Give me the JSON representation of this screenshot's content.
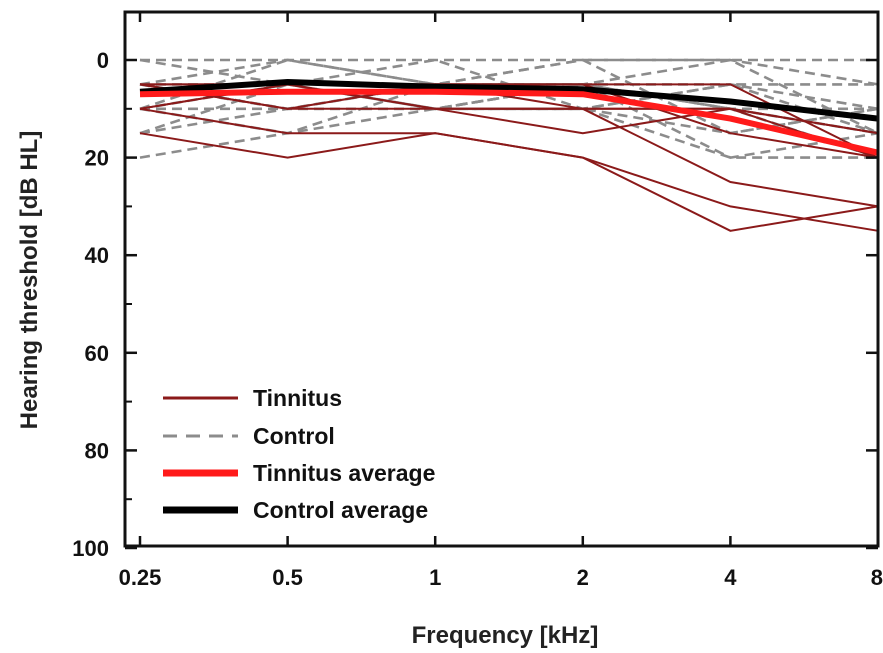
{
  "chart_data": {
    "type": "line",
    "xlabel": "Frequency [kHz]",
    "ylabel": "Hearing threshold [dB HL]",
    "x_ticks": [
      "0.25",
      "0.5",
      "1",
      "2",
      "4",
      "8"
    ],
    "x_scale": "log2",
    "y_ticks": [
      "0",
      "20",
      "40",
      "60",
      "80",
      "100"
    ],
    "ylim": [
      100,
      -10
    ],
    "y_inverted": true,
    "grid": false,
    "legend_position": "bottom-left",
    "legend": [
      {
        "label": "Tinnitus",
        "color": "#8b1a1a",
        "style": "solid"
      },
      {
        "label": "Control",
        "color": "#8c8c8c",
        "style": "dashed"
      },
      {
        "label": "Tinnitus average",
        "color": "#ff1a1a",
        "style": "solid-thick"
      },
      {
        "label": "Control average",
        "color": "#000000",
        "style": "solid-thick"
      }
    ],
    "x": [
      0.25,
      0.5,
      1,
      2,
      4,
      8
    ],
    "tinnitus_individual": [
      [
        15,
        20,
        15,
        20,
        35,
        30
      ],
      [
        10,
        15,
        15,
        20,
        30,
        35
      ],
      [
        5,
        10,
        10,
        10,
        25,
        30
      ],
      [
        10,
        5,
        10,
        10,
        10,
        20
      ],
      [
        5,
        10,
        5,
        5,
        15,
        20
      ],
      [
        10,
        5,
        10,
        15,
        10,
        15
      ],
      [
        5,
        5,
        5,
        10,
        10,
        15
      ],
      [
        5,
        5,
        5,
        5,
        5,
        20
      ]
    ],
    "control_individual": [
      [
        5,
        0,
        5,
        0,
        0,
        5
      ],
      [
        10,
        5,
        10,
        5,
        5,
        10
      ],
      [
        10,
        15,
        5,
        5,
        10,
        15
      ],
      [
        15,
        10,
        10,
        10,
        15,
        10
      ],
      [
        20,
        15,
        10,
        10,
        20,
        20
      ],
      [
        0,
        5,
        0,
        10,
        5,
        15
      ],
      [
        5,
        10,
        5,
        0,
        15,
        10
      ],
      [
        10,
        0,
        5,
        5,
        0,
        15
      ],
      [
        5,
        10,
        10,
        5,
        10,
        20
      ],
      [
        15,
        5,
        10,
        10,
        5,
        5
      ],
      [
        0,
        0,
        0,
        0,
        0,
        0
      ],
      [
        10,
        10,
        5,
        5,
        20,
        15
      ],
      [
        5,
        5,
        10,
        5,
        10,
        10
      ]
    ],
    "series": [
      {
        "name": "Tinnitus average",
        "values": [
          7,
          6.5,
          6.5,
          7,
          12,
          19
        ]
      },
      {
        "name": "Control average",
        "values": [
          6.5,
          4.5,
          5.5,
          6,
          8.5,
          12
        ]
      }
    ]
  }
}
